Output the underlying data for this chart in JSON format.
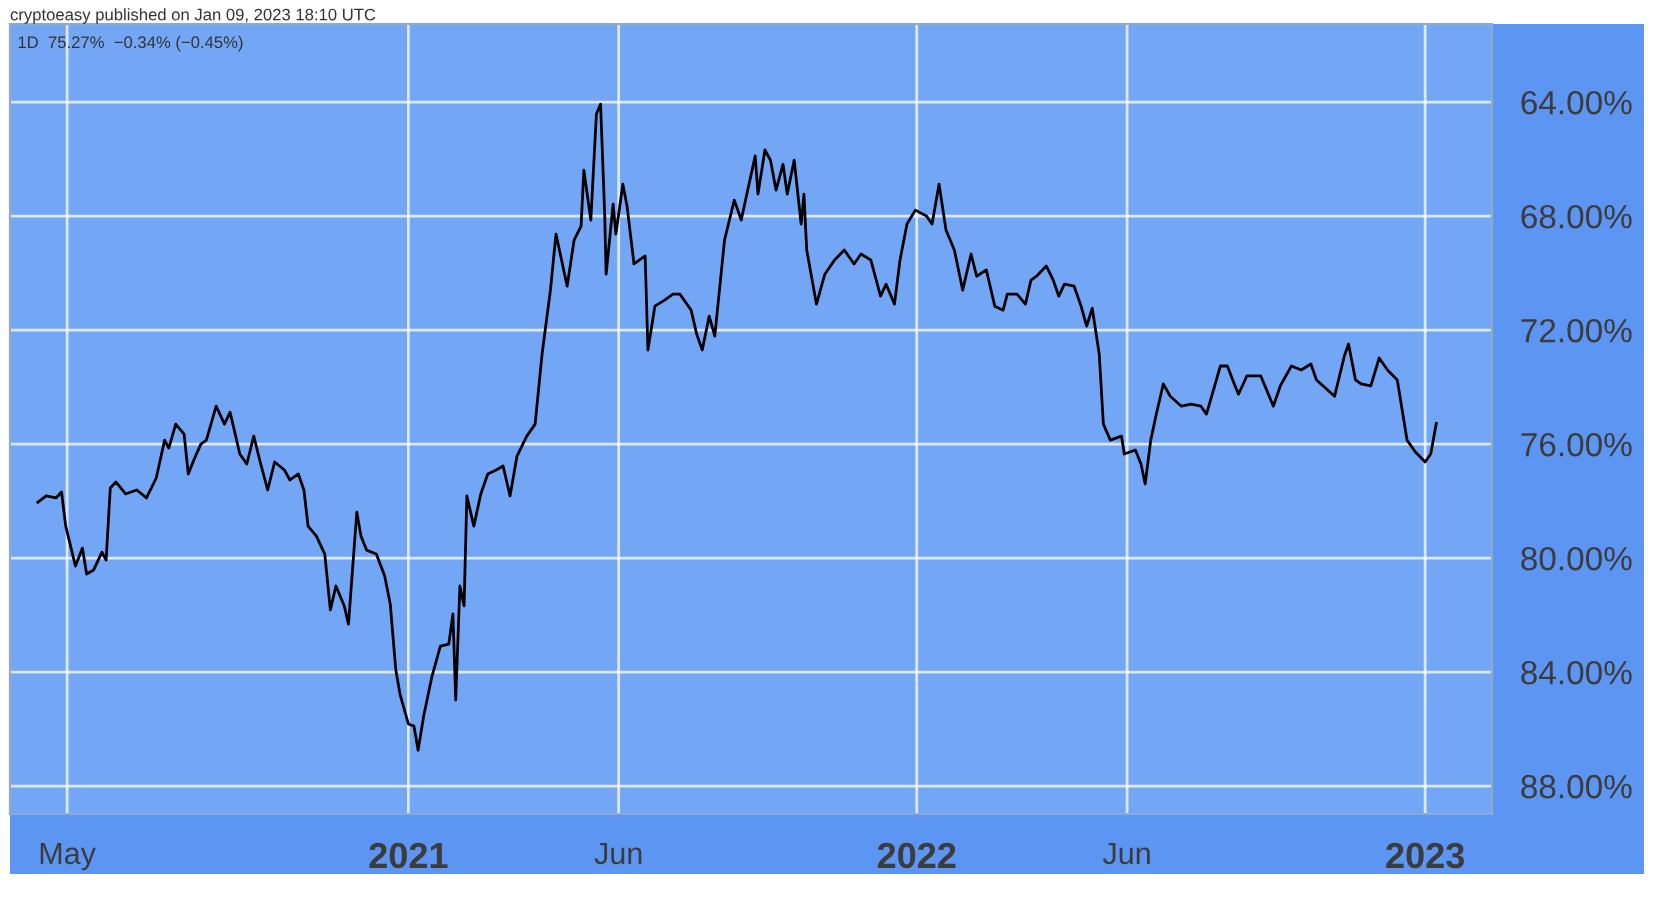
{
  "chart_data": {
    "type": "line",
    "title": "1D  75.27%  −0.34% (−0.45%)",
    "annotations": [
      "cryptoeasy published on Jan 09, 2023 18:10 UTC"
    ],
    "x": [
      "2020-04-10",
      "2020-04-16",
      "2020-04-23",
      "2020-04-27",
      "2020-04-30",
      "2020-05-07",
      "2020-05-12",
      "2020-05-15",
      "2020-05-20",
      "2020-05-26",
      "2020-05-29",
      "2020-06-01",
      "2020-06-05",
      "2020-06-12",
      "2020-06-20",
      "2020-06-27",
      "2020-07-04",
      "2020-07-10",
      "2020-07-13",
      "2020-07-18",
      "2020-07-24",
      "2020-07-27",
      "2020-07-31",
      "2020-08-05",
      "2020-08-09",
      "2020-08-16",
      "2020-08-22",
      "2020-08-26",
      "2020-09-02",
      "2020-09-07",
      "2020-09-12",
      "2020-09-17",
      "2020-09-22",
      "2020-09-27",
      "2020-10-04",
      "2020-10-08",
      "2020-10-14",
      "2020-10-18",
      "2020-10-21",
      "2020-10-27",
      "2020-11-02",
      "2020-11-06",
      "2020-11-10",
      "2020-11-16",
      "2020-11-19",
      "2020-11-25",
      "2020-11-28",
      "2020-12-02",
      "2020-12-09",
      "2020-12-15",
      "2020-12-19",
      "2020-12-23",
      "2020-12-26",
      "2021-01-01",
      "2021-01-05",
      "2021-01-08",
      "2021-01-12",
      "2021-01-18",
      "2021-01-24",
      "2021-01-30",
      "2021-02-02",
      "2021-02-04",
      "2021-02-07",
      "2021-02-10",
      "2021-02-12",
      "2021-02-17",
      "2021-02-22",
      "2021-02-27",
      "2021-03-05",
      "2021-03-10",
      "2021-03-15",
      "2021-03-20",
      "2021-03-27",
      "2021-04-02",
      "2021-04-07",
      "2021-04-13",
      "2021-04-17",
      "2021-04-25",
      "2021-04-30",
      "2021-05-05",
      "2021-05-07",
      "2021-05-12",
      "2021-05-16",
      "2021-05-19",
      "2021-05-22",
      "2021-05-23",
      "2021-05-28",
      "2021-05-30",
      "2021-06-04",
      "2021-06-07",
      "2021-06-12",
      "2021-06-20",
      "2021-06-22",
      "2021-06-27",
      "2021-07-04",
      "2021-07-10",
      "2021-07-15",
      "2021-07-23",
      "2021-07-27",
      "2021-07-31",
      "2021-08-05",
      "2021-08-09",
      "2021-08-16",
      "2021-08-23",
      "2021-08-28",
      "2021-09-01",
      "2021-09-07",
      "2021-09-09",
      "2021-09-14",
      "2021-09-18",
      "2021-09-22",
      "2021-09-27",
      "2021-09-30",
      "2021-10-05",
      "2021-10-10",
      "2021-10-12",
      "2021-10-14",
      "2021-10-21",
      "2021-10-27",
      "2021-11-03",
      "2021-11-10",
      "2021-11-17",
      "2021-11-22",
      "2021-11-29",
      "2021-12-06",
      "2021-12-10",
      "2021-12-16",
      "2021-12-20",
      "2021-12-25",
      "2021-12-31",
      "2022-01-08",
      "2022-01-12",
      "2022-01-17",
      "2022-01-22",
      "2022-01-28",
      "2022-02-03",
      "2022-02-09",
      "2022-02-13",
      "2022-02-20",
      "2022-02-26",
      "2022-03-04",
      "2022-03-07",
      "2022-03-14",
      "2022-03-20",
      "2022-03-24",
      "2022-03-28",
      "2022-04-04",
      "2022-04-09",
      "2022-04-13",
      "2022-04-17",
      "2022-04-24",
      "2022-04-29",
      "2022-05-03",
      "2022-05-07",
      "2022-05-12",
      "2022-05-15",
      "2022-05-20",
      "2022-05-28",
      "2022-05-30",
      "2022-06-07",
      "2022-06-11",
      "2022-06-14",
      "2022-06-18",
      "2022-06-22",
      "2022-06-27",
      "2022-07-02",
      "2022-07-10",
      "2022-07-17",
      "2022-07-24",
      "2022-07-28",
      "2022-08-02",
      "2022-08-07",
      "2022-08-12",
      "2022-08-17",
      "2022-08-20",
      "2022-08-26",
      "2022-09-05",
      "2022-09-14",
      "2022-09-19",
      "2022-09-27",
      "2022-10-04",
      "2022-10-11",
      "2022-10-15",
      "2022-10-28",
      "2022-11-04",
      "2022-11-07",
      "2022-11-12",
      "2022-11-16",
      "2022-11-23",
      "2022-11-29",
      "2022-12-05",
      "2022-12-12",
      "2022-12-19",
      "2022-12-25",
      "2023-01-01",
      "2023-01-05",
      "2023-01-09"
    ],
    "series": [
      {
        "color": "#000000",
        "values": [
          78.04,
          77.82,
          77.89,
          77.68,
          78.88,
          80.28,
          79.65,
          80.56,
          80.42,
          79.79,
          80.07,
          77.54,
          77.33,
          77.75,
          77.61,
          77.89,
          77.19,
          75.86,
          76.14,
          75.3,
          75.65,
          77.05,
          76.56,
          76.0,
          75.86,
          74.67,
          75.3,
          74.88,
          76.35,
          76.7,
          75.72,
          76.7,
          77.61,
          76.63,
          76.91,
          77.26,
          77.05,
          77.61,
          78.88,
          79.23,
          79.86,
          81.82,
          80.98,
          81.68,
          82.32,
          78.39,
          79.23,
          79.72,
          79.86,
          80.63,
          81.61,
          83.93,
          84.77,
          85.82,
          85.89,
          86.74,
          85.54,
          84.14,
          83.09,
          83.02,
          81.96,
          84.98,
          80.98,
          81.68,
          77.82,
          78.88,
          77.75,
          77.05,
          76.91,
          76.77,
          77.82,
          76.42,
          75.72,
          75.3,
          72.84,
          70.6,
          68.63,
          70.46,
          68.84,
          68.35,
          66.39,
          68.14,
          64.42,
          64.07,
          68.0,
          70.04,
          67.58,
          68.63,
          66.88,
          67.65,
          69.68,
          69.4,
          72.7,
          71.16,
          70.95,
          70.74,
          70.74,
          71.3,
          72.14,
          72.7,
          71.51,
          72.21,
          68.84,
          67.44,
          68.14,
          67.23,
          65.89,
          67.23,
          65.68,
          66.04,
          67.09,
          66.18,
          67.23,
          66.04,
          68.28,
          67.23,
          69.19,
          71.09,
          70.04,
          69.54,
          69.19,
          69.68,
          69.33,
          69.54,
          70.81,
          70.39,
          71.09,
          69.54,
          68.28,
          67.79,
          68.0,
          68.28,
          66.88,
          68.49,
          69.19,
          70.6,
          69.33,
          70.11,
          69.89,
          71.16,
          71.3,
          70.74,
          70.74,
          71.09,
          70.25,
          70.11,
          69.75,
          70.25,
          70.81,
          70.39,
          70.46,
          71.16,
          71.86,
          71.23,
          72.84,
          75.3,
          75.86,
          75.72,
          76.35,
          76.21,
          76.7,
          77.4,
          75.86,
          74.95,
          73.89,
          74.32,
          74.67,
          74.6,
          74.67,
          74.95,
          74.11,
          73.26,
          73.26,
          73.89,
          74.25,
          73.61,
          73.61,
          74.67,
          73.96,
          73.26,
          73.4,
          73.19,
          73.75,
          74.32,
          72.91,
          72.49,
          73.75,
          73.89,
          73.96,
          72.98,
          73.4,
          73.75,
          75.86,
          76.28,
          76.63,
          76.35,
          75.27
        ]
      }
    ],
    "xlim": [
      "2020-03-21",
      "2023-02-18"
    ],
    "xticks": [
      {
        "value": "2020-05-01",
        "label": "May"
      },
      {
        "value": "2021-01-01",
        "label": "2021"
      },
      {
        "value": "2021-06-01",
        "label": "Jun"
      },
      {
        "value": "2022-01-01",
        "label": "2022"
      },
      {
        "value": "2022-06-01",
        "label": "Jun"
      },
      {
        "value": "2023-01-01",
        "label": "2023"
      }
    ],
    "ylim": [
      88.98,
      61.26
    ],
    "yticks": [
      {
        "value": 64,
        "label": "64.00%"
      },
      {
        "value": 68,
        "label": "68.00%"
      },
      {
        "value": 72,
        "label": "72.00%"
      },
      {
        "value": 76,
        "label": "76.00%"
      },
      {
        "value": 80,
        "label": "80.00%"
      },
      {
        "value": 84,
        "label": "84.00%"
      },
      {
        "value": 88,
        "label": "88.00%"
      }
    ],
    "grid": true,
    "legend": false
  }
}
